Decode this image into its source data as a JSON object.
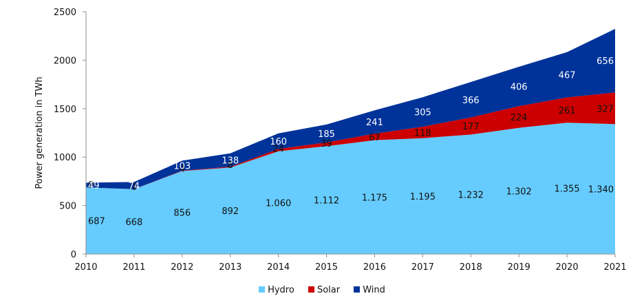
{
  "chart_data": {
    "type": "area",
    "stacked": true,
    "title": "",
    "xlabel": "",
    "ylabel": "Power generation in TWh",
    "ylim": [
      0,
      2500
    ],
    "yticks": [
      "0",
      "500",
      "1000",
      "1500",
      "2000",
      "2500"
    ],
    "ytick_values": [
      0,
      500,
      1000,
      1500,
      2000,
      2500
    ],
    "categories": [
      "2010",
      "2011",
      "2012",
      "2013",
      "2014",
      "2015",
      "2016",
      "2017",
      "2018",
      "2019",
      "2020",
      "2021"
    ],
    "series": [
      {
        "name": "Hydro",
        "color": "#66CCFF",
        "values": [
          687,
          668,
          856,
          892,
          1060,
          1112,
          1175,
          1195,
          1232,
          1302,
          1355,
          1340
        ],
        "labels": [
          "687",
          "668",
          "856",
          "892",
          "1.060",
          "1.112",
          "1.175",
          "1.195",
          "1.232",
          "1.302",
          "1.355",
          "1.340"
        ]
      },
      {
        "name": "Solar",
        "color": "#CC0000",
        "values": [
          0,
          1,
          4,
          8,
          24,
          39,
          67,
          118,
          177,
          224,
          261,
          327
        ],
        "labels": [
          "0",
          "1",
          "4",
          "8",
          "24",
          "39",
          "67",
          "118",
          "177",
          "224",
          "261",
          "327"
        ]
      },
      {
        "name": "Wind",
        "color": "#003399",
        "values": [
          49,
          74,
          103,
          138,
          160,
          185,
          241,
          305,
          366,
          406,
          467,
          656
        ],
        "labels": [
          "49",
          "74",
          "103",
          "138",
          "160",
          "185",
          "241",
          "305",
          "366",
          "406",
          "467",
          "656"
        ]
      }
    ],
    "legend": [
      "Hydro",
      "Solar",
      "Wind"
    ],
    "legend_position": "bottom",
    "grid": false
  }
}
